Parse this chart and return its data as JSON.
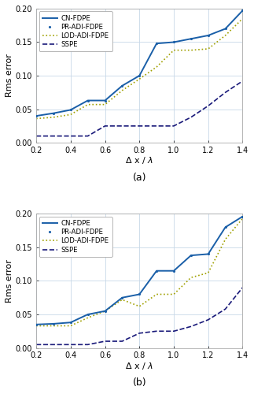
{
  "x": [
    0.2,
    0.3,
    0.4,
    0.5,
    0.6,
    0.7,
    0.8,
    0.9,
    1.0,
    1.1,
    1.2,
    1.3,
    1.4
  ],
  "a_cn": [
    0.04,
    0.044,
    0.049,
    0.063,
    0.063,
    0.085,
    0.1,
    0.148,
    0.15,
    0.155,
    0.16,
    0.17,
    0.197
  ],
  "a_pr": [
    0.04,
    0.044,
    0.049,
    0.063,
    0.063,
    0.085,
    0.1,
    0.148,
    0.15,
    0.155,
    0.16,
    0.17,
    0.197
  ],
  "a_lod": [
    0.036,
    0.038,
    0.042,
    0.057,
    0.057,
    0.078,
    0.095,
    0.113,
    0.138,
    0.138,
    0.14,
    0.16,
    0.185
  ],
  "a_sspe": [
    0.01,
    0.01,
    0.01,
    0.01,
    0.025,
    0.025,
    0.025,
    0.025,
    0.025,
    0.038,
    0.055,
    0.075,
    0.092
  ],
  "b_cn": [
    0.035,
    0.036,
    0.038,
    0.05,
    0.055,
    0.075,
    0.08,
    0.115,
    0.115,
    0.138,
    0.14,
    0.18,
    0.196
  ],
  "b_pr": [
    0.035,
    0.036,
    0.038,
    0.05,
    0.055,
    0.075,
    0.08,
    0.115,
    0.115,
    0.138,
    0.14,
    0.18,
    0.196
  ],
  "b_lod": [
    0.033,
    0.033,
    0.033,
    0.045,
    0.055,
    0.072,
    0.062,
    0.08,
    0.08,
    0.105,
    0.112,
    0.162,
    0.193
  ],
  "b_sspe": [
    0.005,
    0.005,
    0.005,
    0.005,
    0.01,
    0.01,
    0.022,
    0.025,
    0.025,
    0.032,
    0.042,
    0.058,
    0.09
  ],
  "color_cn": "#1a5fa8",
  "color_lod": "#a0a000",
  "color_sspe": "#1a1a7a",
  "xlabel": "$\\Delta$ x / $\\lambda$",
  "ylabel": "Rms error",
  "xlim": [
    0.2,
    1.4
  ],
  "ylim": [
    0.0,
    0.2
  ],
  "yticks": [
    0.0,
    0.05,
    0.1,
    0.15,
    0.2
  ],
  "xticks": [
    0.2,
    0.4,
    0.6,
    0.8,
    1.0,
    1.2,
    1.4
  ],
  "label_cn": "CN-FDPE",
  "label_pr": "PR-ADI-FDPE",
  "label_lod": "LOD-ADI-FDPE",
  "label_sspe": "SSPE",
  "caption_a": "(a)",
  "caption_b": "(b)"
}
